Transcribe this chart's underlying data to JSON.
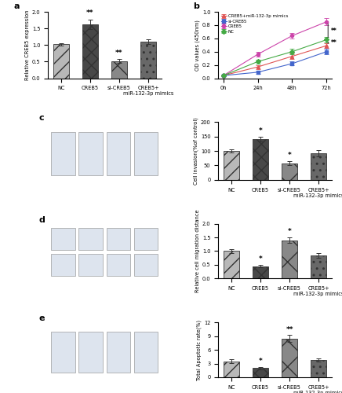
{
  "panel_a": {
    "categories": [
      "NC",
      "CREB5",
      "si-CREB5",
      "CREB5+\nmiR-132-3p mimics"
    ],
    "values": [
      1.02,
      1.62,
      0.52,
      1.1
    ],
    "errors": [
      0.04,
      0.15,
      0.05,
      0.08
    ],
    "ylabel": "Relative CREB5 expression",
    "ylim": [
      0.0,
      2.0
    ],
    "yticks": [
      0.0,
      0.5,
      1.0,
      1.5,
      2.0
    ],
    "sig_labels": [
      "",
      "**",
      "**",
      ""
    ],
    "hatch_patterns": [
      "//",
      "xx",
      "x",
      ".."
    ],
    "bar_colors": [
      "#b8b8b8",
      "#484848",
      "#888888",
      "#686868"
    ],
    "title": "a"
  },
  "panel_b": {
    "timepoints": [
      0,
      24,
      48,
      72
    ],
    "series_order": [
      "CREB5+miR-132-3p mimics",
      "si-CREB5",
      "CREB5",
      "NC"
    ],
    "series": {
      "CREB5+miR-132-3p mimics": {
        "values": [
          0.04,
          0.17,
          0.33,
          0.49
        ],
        "errors": [
          0.01,
          0.03,
          0.04,
          0.04
        ],
        "color": "#e05555",
        "marker": "^"
      },
      "si-CREB5": {
        "values": [
          0.04,
          0.09,
          0.22,
          0.4
        ],
        "errors": [
          0.01,
          0.02,
          0.03,
          0.04
        ],
        "color": "#4466cc",
        "marker": "s"
      },
      "CREB5": {
        "values": [
          0.04,
          0.36,
          0.64,
          0.85
        ],
        "errors": [
          0.01,
          0.04,
          0.04,
          0.05
        ],
        "color": "#cc44aa",
        "marker": "o"
      },
      "NC": {
        "values": [
          0.04,
          0.25,
          0.4,
          0.58
        ],
        "errors": [
          0.01,
          0.03,
          0.04,
          0.04
        ],
        "color": "#44aa44",
        "marker": "D"
      }
    },
    "ylabel": "OD values (450nm)",
    "ylim": [
      0,
      1.0
    ],
    "yticks": [
      0,
      0.2,
      0.4,
      0.6,
      0.8,
      1.0
    ],
    "xtick_labels": [
      "0h",
      "24h",
      "48h",
      "72h"
    ],
    "title": "b"
  },
  "panel_c_bar": {
    "categories": [
      "NC",
      "CREB5",
      "si-CREB5",
      "CREB5+\nmiR-132-3p mimics"
    ],
    "values": [
      100,
      140,
      57,
      92
    ],
    "errors": [
      5,
      8,
      7,
      10
    ],
    "ylabel": "Cell invasion(%of control)",
    "ylim": [
      0,
      200
    ],
    "yticks": [
      0,
      50,
      100,
      150,
      200
    ],
    "sig_labels": [
      "",
      "*",
      "*",
      ""
    ],
    "hatch_patterns": [
      "//",
      "xx",
      "x",
      ".."
    ],
    "bar_colors": [
      "#b8b8b8",
      "#484848",
      "#888888",
      "#686868"
    ]
  },
  "panel_d_bar": {
    "categories": [
      "NC",
      "CREB5",
      "si-CREB5",
      "CREB5+\nmiR-132-3p mimics"
    ],
    "values": [
      1.0,
      0.45,
      1.4,
      0.85
    ],
    "errors": [
      0.06,
      0.05,
      0.1,
      0.08
    ],
    "ylabel": "Relative cell migration distance",
    "ylim": [
      0,
      2.0
    ],
    "yticks": [
      0,
      0.5,
      1.0,
      1.5,
      2.0
    ],
    "sig_labels": [
      "",
      "*",
      "*",
      ""
    ],
    "hatch_patterns": [
      "//",
      "xx",
      "x",
      ".."
    ],
    "bar_colors": [
      "#b8b8b8",
      "#484848",
      "#888888",
      "#686868"
    ]
  },
  "panel_e_bar": {
    "categories": [
      "NC",
      "CREB5",
      "si-CREB5",
      "CREB5+\nmiR-132-3p mimics"
    ],
    "values": [
      3.5,
      2.0,
      8.5,
      3.8
    ],
    "errors": [
      0.4,
      0.3,
      0.7,
      0.4
    ],
    "ylabel": "Total Apoptotic rate(%)",
    "ylim": [
      0,
      12
    ],
    "yticks": [
      0,
      3,
      6,
      9,
      12
    ],
    "sig_labels": [
      "",
      "*",
      "**",
      ""
    ],
    "hatch_patterns": [
      "//",
      "xx",
      "x",
      ".."
    ],
    "bar_colors": [
      "#b8b8b8",
      "#484848",
      "#888888",
      "#686868"
    ]
  },
  "global": {
    "bg_color": "#ffffff",
    "font_size": 6,
    "bar_width": 0.55,
    "img_color": "#c8d4e0",
    "img_border": "#999999"
  }
}
